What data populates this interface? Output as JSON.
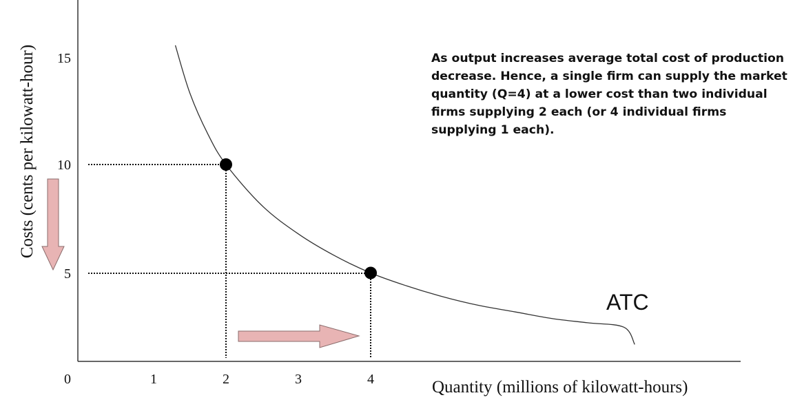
{
  "chart_data": {
    "type": "line",
    "xlabel": "Quantity (millions of kilowatt-hours)",
    "ylabel": "Costs (cents per kilowatt-hour)",
    "x_ticks": [
      "0",
      "1",
      "2",
      "3",
      "4"
    ],
    "y_ticks": [
      "5",
      "10",
      "15"
    ],
    "xlim": [
      0,
      9
    ],
    "ylim": [
      0,
      16.5
    ],
    "grid": false,
    "series": [
      {
        "name": "ATC",
        "x": [
          1.3,
          1.5,
          1.75,
          2,
          2.5,
          3,
          3.5,
          4,
          4.5,
          5,
          5.5,
          6,
          6.5,
          7,
          7.5,
          7.65
        ],
        "y": [
          15.5,
          13.3,
          11.4,
          10,
          8.1,
          6.8,
          5.8,
          5,
          4.4,
          3.9,
          3.5,
          3.2,
          2.9,
          2.7,
          2.5,
          1.7
        ]
      }
    ],
    "highlighted_points": [
      {
        "x": 2,
        "y": 10
      },
      {
        "x": 4,
        "y": 5
      }
    ],
    "annotations": {
      "curve_label": "ATC",
      "text": "As output increases average total cost of production decrease. Hence, a single firm can supply the market quantity (Q=4) at a lower cost than two individual firms supplying 2 each (or 4 individual firms supplying 1 each).",
      "arrows": [
        "down",
        "right"
      ]
    },
    "colors": {
      "curve": "#333333",
      "points": "#000000",
      "arrow_fill": "#e8b4b4",
      "arrow_stroke": "#8a6b6b"
    }
  }
}
